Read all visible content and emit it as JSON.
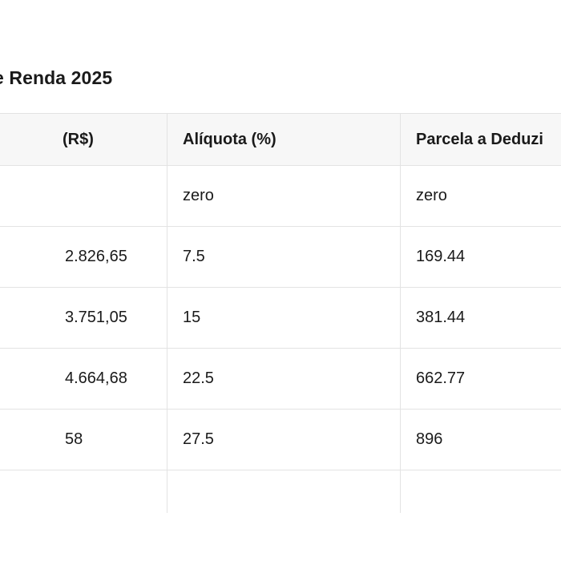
{
  "title": "e Renda 2025",
  "table": {
    "headers": [
      "(R$)",
      "Alíquota (%)",
      "Parcela a Deduzi"
    ],
    "rows": [
      [
        "",
        "zero",
        "zero"
      ],
      [
        "2.826,65",
        "7.5",
        "169.44"
      ],
      [
        "3.751,05",
        "15",
        "381.44"
      ],
      [
        "4.664,68",
        "22.5",
        "662.77"
      ],
      [
        "58",
        "27.5",
        "896"
      ],
      [
        "",
        "",
        ""
      ]
    ]
  }
}
